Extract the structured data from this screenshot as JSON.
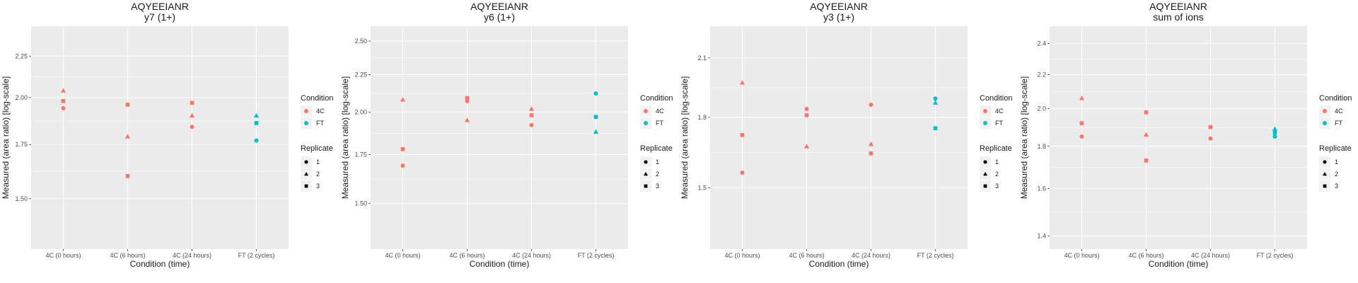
{
  "chart_data": [
    {
      "type": "scatter",
      "title": "AQYEEIANR",
      "subtitle": "y7 (1+)",
      "xlabel": "Condition (time)",
      "ylabel": "Measured (area ratio) [log-scale]",
      "categories": [
        "4C (0 hours)",
        "4C (6 hours)",
        "4C (24 hours)",
        "FT (2 cycles)"
      ],
      "y_ticks": [
        "1.50",
        "1.75",
        "2.00",
        "2.25"
      ],
      "ylim": [
        1.3,
        2.45
      ],
      "points": [
        {
          "x": "4C (0 hours)",
          "y": 2.04,
          "condition": "4C",
          "replicate": "2"
        },
        {
          "x": "4C (0 hours)",
          "y": 1.98,
          "condition": "4C",
          "replicate": "3"
        },
        {
          "x": "4C (0 hours)",
          "y": 1.94,
          "condition": "4C",
          "replicate": "1"
        },
        {
          "x": "4C (6 hours)",
          "y": 1.96,
          "condition": "4C",
          "replicate": "3"
        },
        {
          "x": "4C (6 hours)",
          "y": 1.79,
          "condition": "4C",
          "replicate": "2"
        },
        {
          "x": "4C (6 hours)",
          "y": 1.6,
          "condition": "4C",
          "replicate": "3"
        },
        {
          "x": "4C (24 hours)",
          "y": 1.97,
          "condition": "4C",
          "replicate": "3"
        },
        {
          "x": "4C (24 hours)",
          "y": 1.9,
          "condition": "4C",
          "replicate": "2"
        },
        {
          "x": "4C (24 hours)",
          "y": 1.84,
          "condition": "4C",
          "replicate": "1"
        },
        {
          "x": "FT (2 cycles)",
          "y": 1.9,
          "condition": "FT",
          "replicate": "2"
        },
        {
          "x": "FT (2 cycles)",
          "y": 1.86,
          "condition": "FT",
          "replicate": "3"
        },
        {
          "x": "FT (2 cycles)",
          "y": 1.77,
          "condition": "FT",
          "replicate": "1"
        }
      ]
    },
    {
      "type": "scatter",
      "title": "AQYEEIANR",
      "subtitle": "y6 (1+)",
      "xlabel": "Condition (time)",
      "ylabel": "Measured (area ratio) [log-scale]",
      "categories": [
        "4C (0 hours)",
        "4C (6 hours)",
        "4C (24 hours)",
        "FT (2 cycles)"
      ],
      "y_ticks": [
        "1.50",
        "1.75",
        "2.00",
        "2.25",
        "2.50"
      ],
      "ylim": [
        1.3,
        2.62
      ],
      "points": [
        {
          "x": "4C (0 hours)",
          "y": 2.08,
          "condition": "4C",
          "replicate": "2"
        },
        {
          "x": "4C (0 hours)",
          "y": 1.78,
          "condition": "4C",
          "replicate": "3"
        },
        {
          "x": "4C (0 hours)",
          "y": 1.69,
          "condition": "4C",
          "replicate": "1"
        },
        {
          "x": "4C (6 hours)",
          "y": 2.09,
          "condition": "4C",
          "replicate": "3"
        },
        {
          "x": "4C (6 hours)",
          "y": 2.07,
          "condition": "4C",
          "replicate": "1"
        },
        {
          "x": "4C (6 hours)",
          "y": 1.95,
          "condition": "4C",
          "replicate": "2"
        },
        {
          "x": "4C (24 hours)",
          "y": 2.02,
          "condition": "4C",
          "replicate": "2"
        },
        {
          "x": "4C (24 hours)",
          "y": 1.98,
          "condition": "4C",
          "replicate": "3"
        },
        {
          "x": "4C (24 hours)",
          "y": 1.92,
          "condition": "4C",
          "replicate": "1"
        },
        {
          "x": "FT (2 cycles)",
          "y": 2.12,
          "condition": "FT",
          "replicate": "1"
        },
        {
          "x": "FT (2 cycles)",
          "y": 1.97,
          "condition": "FT",
          "replicate": "3"
        },
        {
          "x": "FT (2 cycles)",
          "y": 1.88,
          "condition": "FT",
          "replicate": "2"
        }
      ]
    },
    {
      "type": "scatter",
      "title": "AQYEEIANR",
      "subtitle": "y3 (1+)",
      "xlabel": "Condition (time)",
      "ylabel": "Measured (area ratio) [log-scale]",
      "categories": [
        "4C (0 hours)",
        "4C (6 hours)",
        "4C (24 hours)",
        "FT (2 cycles)"
      ],
      "y_ticks": [
        "1.5",
        "1.8",
        "2.1"
      ],
      "ylim": [
        1.28,
        2.28
      ],
      "points": [
        {
          "x": "4C (0 hours)",
          "y": 1.97,
          "condition": "4C",
          "replicate": "2"
        },
        {
          "x": "4C (0 hours)",
          "y": 1.72,
          "condition": "4C",
          "replicate": "3"
        },
        {
          "x": "4C (0 hours)",
          "y": 1.56,
          "condition": "4C",
          "replicate": "1"
        },
        {
          "x": "4C (6 hours)",
          "y": 1.84,
          "condition": "4C",
          "replicate": "1"
        },
        {
          "x": "4C (6 hours)",
          "y": 1.81,
          "condition": "4C",
          "replicate": "3"
        },
        {
          "x": "4C (6 hours)",
          "y": 1.67,
          "condition": "4C",
          "replicate": "2"
        },
        {
          "x": "4C (24 hours)",
          "y": 1.86,
          "condition": "4C",
          "replicate": "1"
        },
        {
          "x": "4C (24 hours)",
          "y": 1.68,
          "condition": "4C",
          "replicate": "2"
        },
        {
          "x": "4C (24 hours)",
          "y": 1.64,
          "condition": "4C",
          "replicate": "3"
        },
        {
          "x": "FT (2 cycles)",
          "y": 1.89,
          "condition": "FT",
          "replicate": "1"
        },
        {
          "x": "FT (2 cycles)",
          "y": 1.87,
          "condition": "FT",
          "replicate": "2"
        },
        {
          "x": "FT (2 cycles)",
          "y": 1.75,
          "condition": "FT",
          "replicate": "3"
        }
      ]
    },
    {
      "type": "scatter",
      "title": "AQYEEIANR",
      "subtitle": "sum of ions",
      "xlabel": "Condition (time)",
      "ylabel": "Measured (area ratio) [log-scale]",
      "categories": [
        "4C (0 hours)",
        "4C (6 hours)",
        "4C (24 hours)",
        "FT (2 cycles)"
      ],
      "y_ticks": [
        "1.4",
        "1.6",
        "1.8",
        "2.0",
        "2.2",
        "2.4"
      ],
      "ylim": [
        1.35,
        2.52
      ],
      "points": [
        {
          "x": "4C (0 hours)",
          "y": 2.06,
          "condition": "4C",
          "replicate": "2"
        },
        {
          "x": "4C (0 hours)",
          "y": 1.92,
          "condition": "4C",
          "replicate": "3"
        },
        {
          "x": "4C (0 hours)",
          "y": 1.85,
          "condition": "4C",
          "replicate": "1"
        },
        {
          "x": "4C (6 hours)",
          "y": 1.98,
          "condition": "4C",
          "replicate": "3"
        },
        {
          "x": "4C (6 hours)",
          "y": 1.86,
          "condition": "4C",
          "replicate": "2"
        },
        {
          "x": "4C (6 hours)",
          "y": 1.73,
          "condition": "4C",
          "replicate": "3"
        },
        {
          "x": "4C (24 hours)",
          "y": 1.9,
          "condition": "4C",
          "replicate": "3"
        },
        {
          "x": "4C (24 hours)",
          "y": 1.84,
          "condition": "4C",
          "replicate": "1"
        },
        {
          "x": "FT (2 cycles)",
          "y": 1.89,
          "condition": "FT",
          "replicate": "2"
        },
        {
          "x": "FT (2 cycles)",
          "y": 1.87,
          "condition": "FT",
          "replicate": "3"
        },
        {
          "x": "FT (2 cycles)",
          "y": 1.85,
          "condition": "FT",
          "replicate": "1"
        }
      ]
    }
  ],
  "legend": {
    "condition_title": "Condition",
    "conditions": [
      {
        "label": "4C",
        "color": "#F8766D"
      },
      {
        "label": "FT",
        "color": "#00BFC4"
      }
    ],
    "replicate_title": "Replicate",
    "replicates": [
      {
        "label": "1",
        "shape": "circle"
      },
      {
        "label": "2",
        "shape": "triangle"
      },
      {
        "label": "3",
        "shape": "square"
      }
    ]
  },
  "theme": {
    "panel_background": "#EBEBEB",
    "grid_color": "#FFFFFF"
  }
}
